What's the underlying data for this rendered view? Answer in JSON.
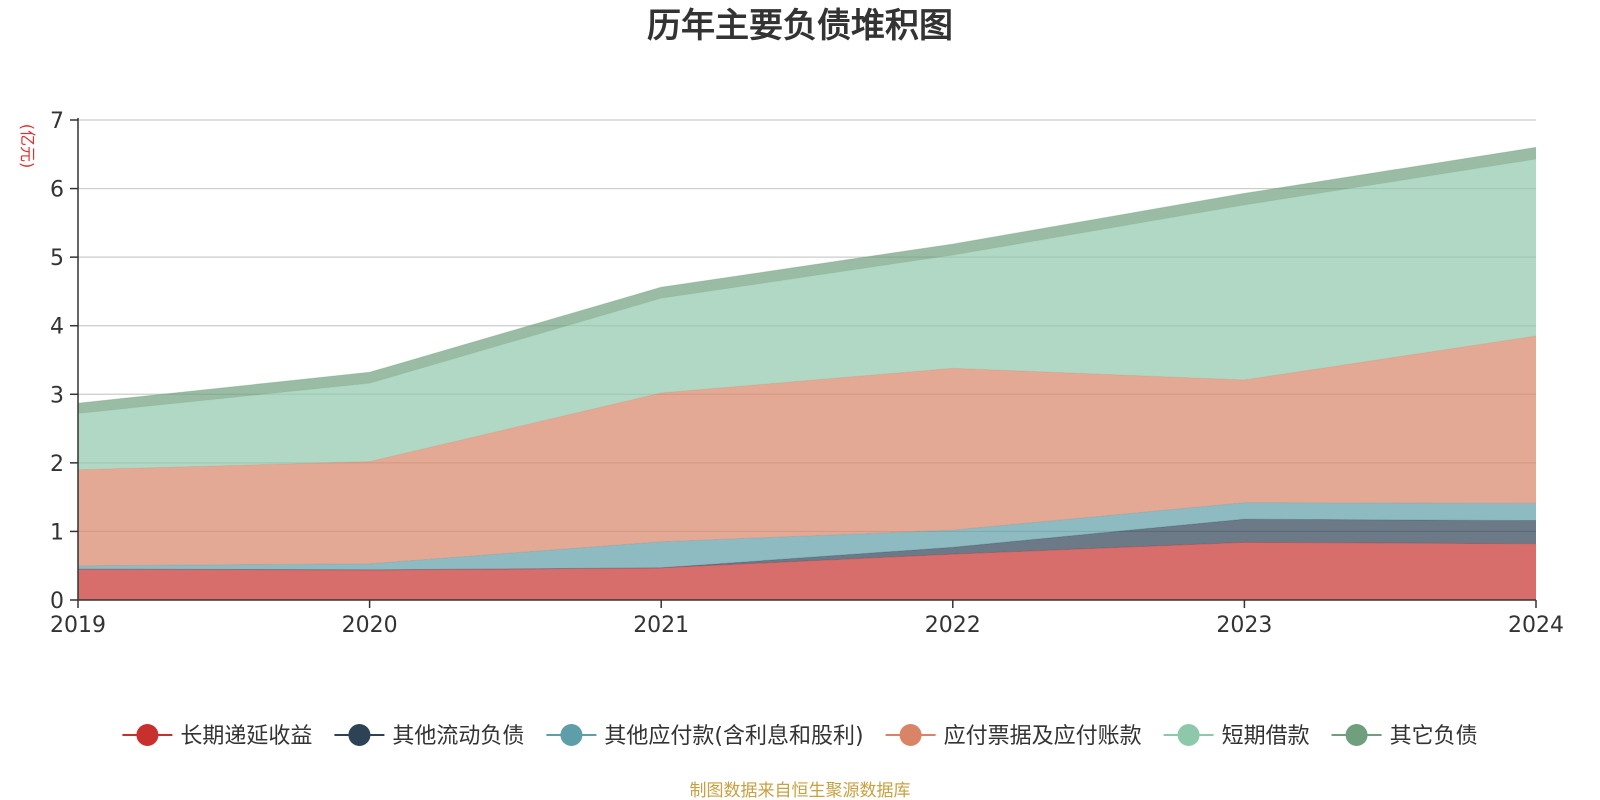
{
  "chart_data": {
    "type": "area",
    "stacked": true,
    "title": "历年主要负债堆积图",
    "unit_label": "(亿元)",
    "x": [
      "2019",
      "2020",
      "2021",
      "2022",
      "2023",
      "2024"
    ],
    "ylim": [
      0,
      7
    ],
    "yticks": [
      0,
      1,
      2,
      3,
      4,
      5,
      6,
      7
    ],
    "grid": true,
    "legend_position": "bottom",
    "series": [
      {
        "name": "长期递延收益",
        "color": "#c8302e",
        "values": [
          0.45,
          0.44,
          0.47,
          0.67,
          0.84,
          0.82
        ]
      },
      {
        "name": "其他流动负债",
        "color": "#2e4256",
        "values": [
          0.0,
          0.0,
          0.0,
          0.1,
          0.34,
          0.34
        ]
      },
      {
        "name": "其他应付款(含利息和股利)",
        "color": "#5e9ea8",
        "values": [
          0.05,
          0.09,
          0.38,
          0.25,
          0.24,
          0.25
        ]
      },
      {
        "name": "应付票据及应付账款",
        "color": "#d98467",
        "values": [
          1.4,
          1.49,
          2.17,
          2.36,
          1.79,
          2.44
        ]
      },
      {
        "name": "短期借款",
        "color": "#8ec8ab",
        "values": [
          0.82,
          1.14,
          1.38,
          1.65,
          2.55,
          2.58
        ]
      },
      {
        "name": "其它负债",
        "color": "#6f9f7d",
        "values": [
          0.15,
          0.16,
          0.16,
          0.16,
          0.17,
          0.17
        ]
      }
    ],
    "source_note": "制图数据来自恒生聚源数据库"
  }
}
